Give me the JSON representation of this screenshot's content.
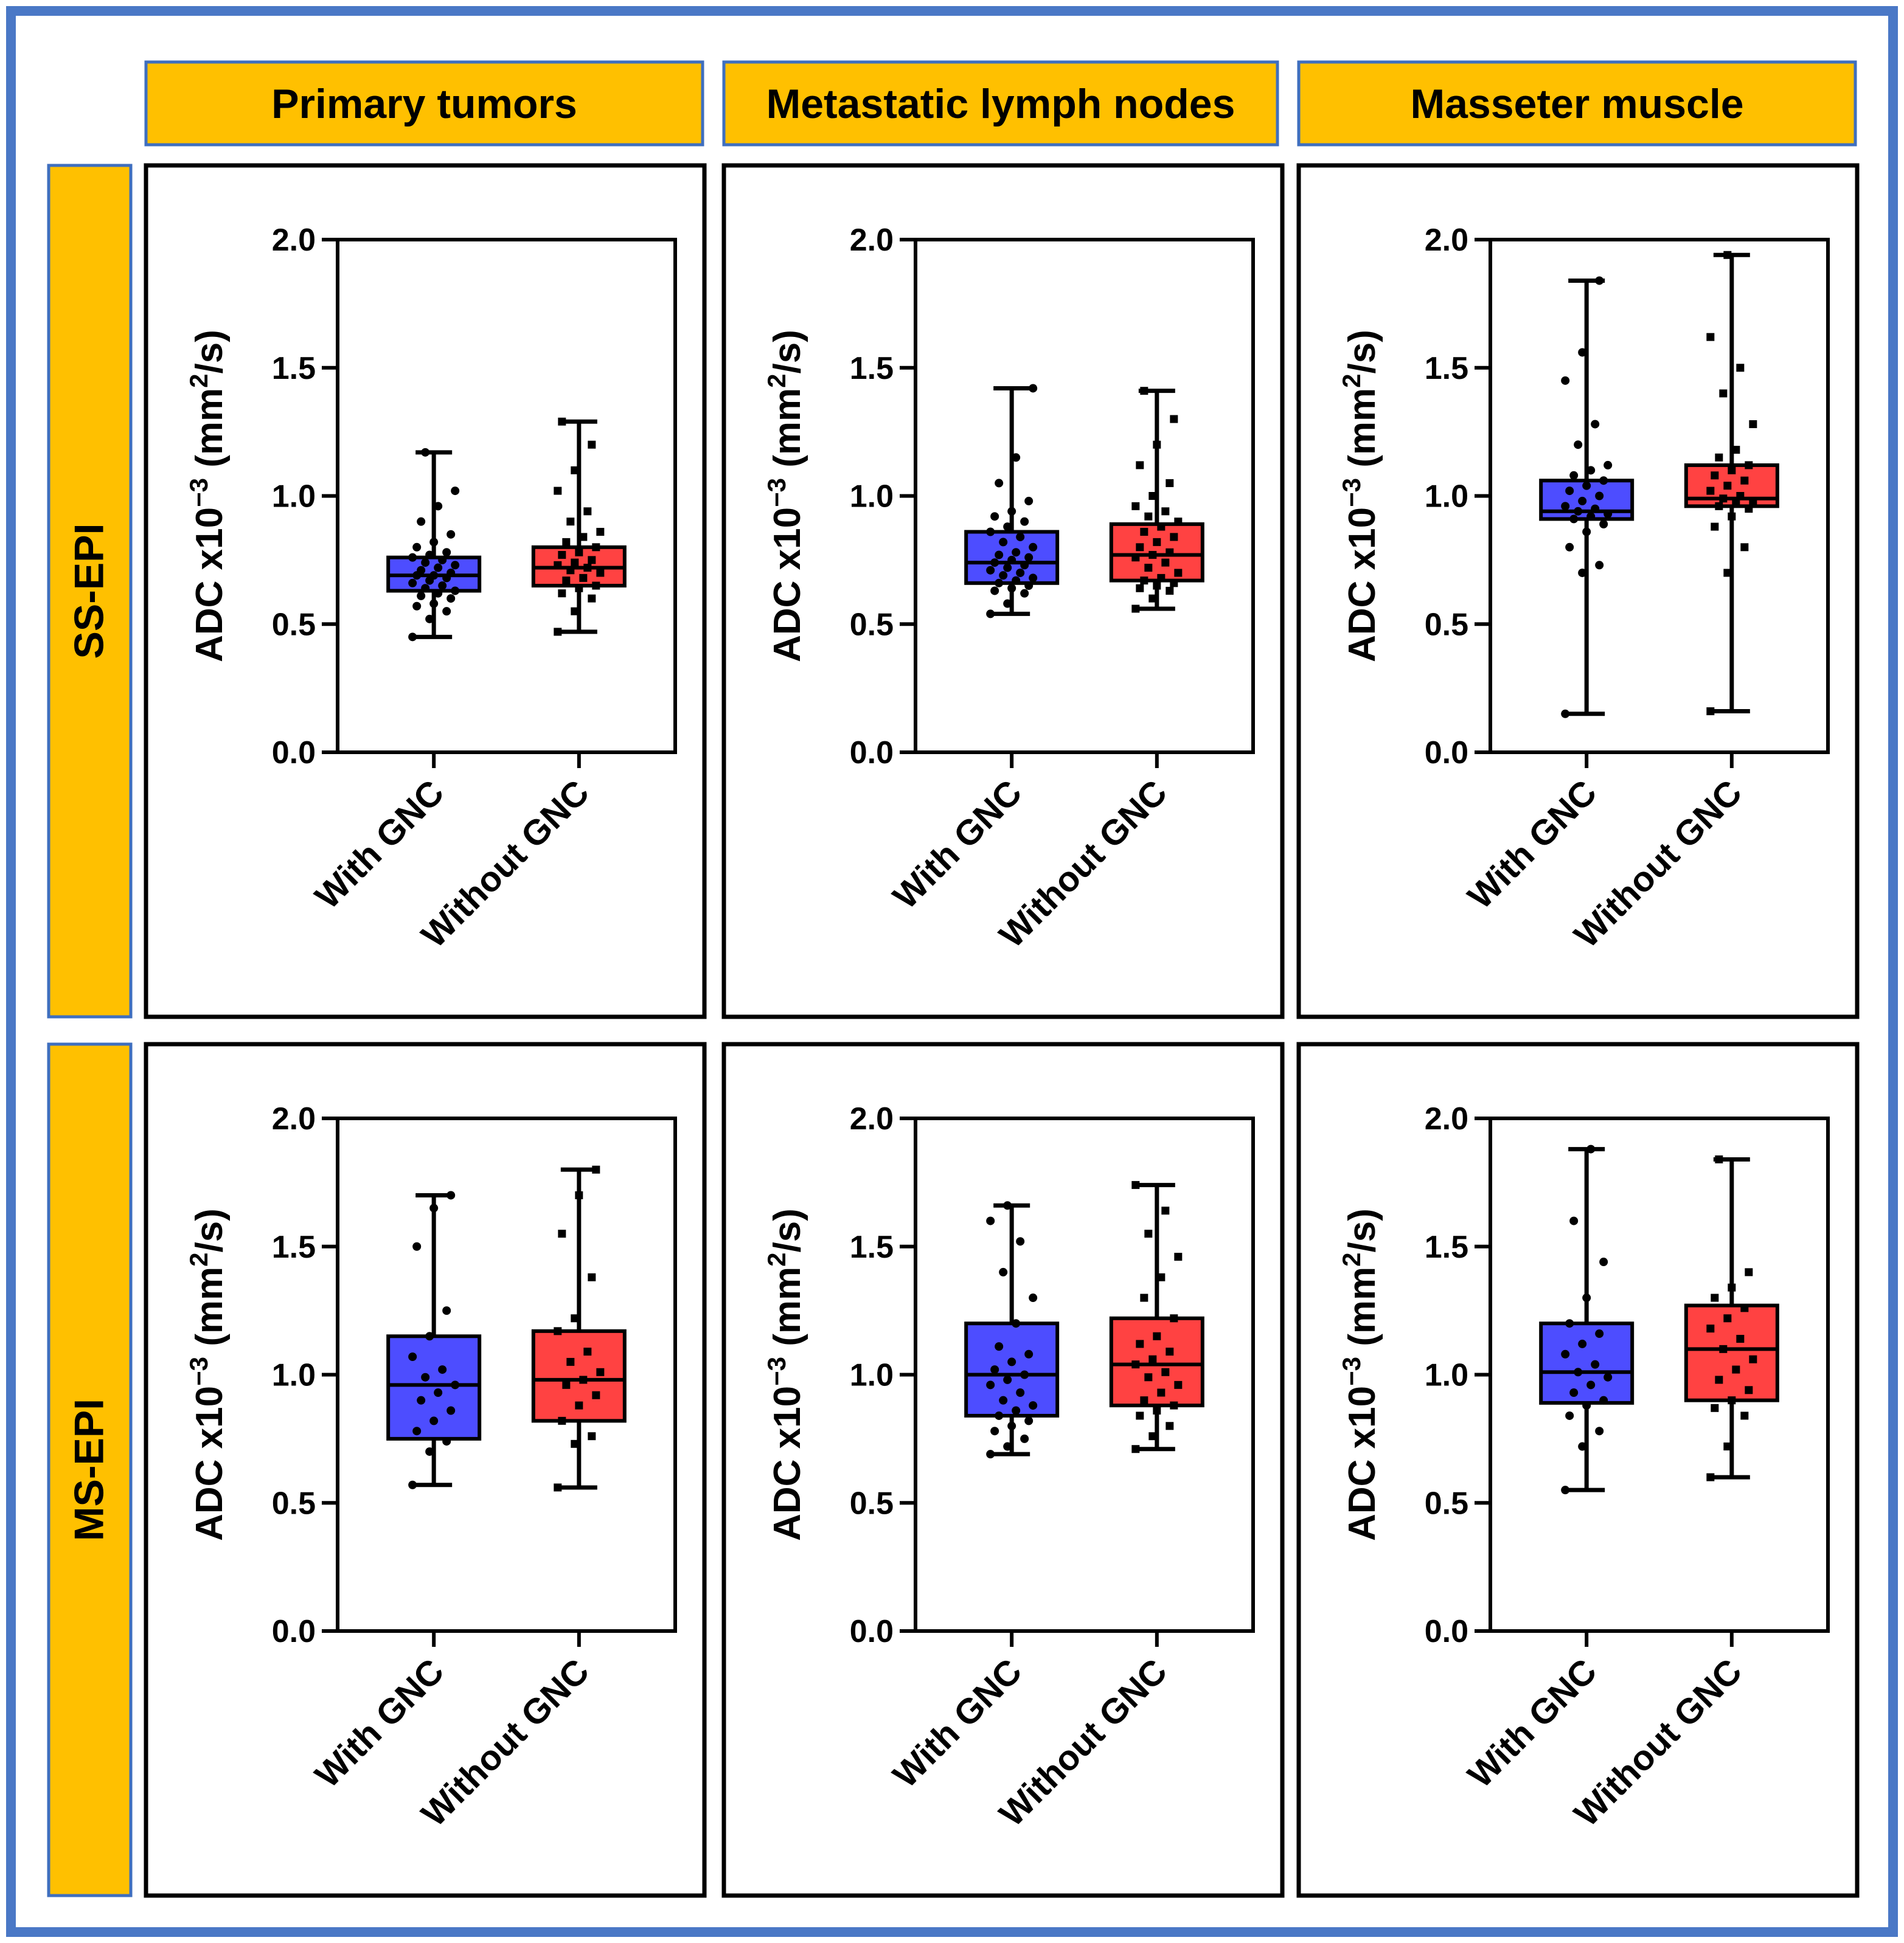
{
  "colors": {
    "frame": "#4a78c6",
    "header_fill": "#ffc000",
    "header_border": "#3f6fbf",
    "with_gnc": "#4d4dff",
    "without_gnc": "#ff4242",
    "ink": "#000000"
  },
  "column_headers": [
    "Primary tumors",
    "Metastatic lymph nodes",
    "Masseter muscle"
  ],
  "row_headers": [
    "SS-EPI",
    "MS-EPI"
  ],
  "chart_data": [
    {
      "type": "box",
      "row": "SS-EPI",
      "column": "Primary tumors",
      "ylabel": "ADC x10^-3 (mm^2/s)",
      "ylim": [
        0,
        2.0
      ],
      "yticks": [
        "0.0",
        "0.5",
        "1.0",
        "1.5",
        "2.0"
      ],
      "categories": [
        "With GNC",
        "Without GNC"
      ],
      "series": [
        {
          "name": "With GNC",
          "min": 0.45,
          "q1": 0.63,
          "median": 0.69,
          "q3": 0.76,
          "max": 1.17,
          "points": [
            0.45,
            0.52,
            0.55,
            0.57,
            0.58,
            0.6,
            0.61,
            0.62,
            0.63,
            0.64,
            0.65,
            0.66,
            0.67,
            0.68,
            0.69,
            0.69,
            0.7,
            0.71,
            0.72,
            0.73,
            0.74,
            0.75,
            0.76,
            0.77,
            0.78,
            0.8,
            0.82,
            0.85,
            0.9,
            0.96,
            1.02,
            1.17
          ]
        },
        {
          "name": "Without GNC",
          "min": 0.47,
          "q1": 0.65,
          "median": 0.72,
          "q3": 0.8,
          "max": 1.29,
          "points": [
            0.47,
            0.55,
            0.6,
            0.62,
            0.64,
            0.65,
            0.67,
            0.68,
            0.7,
            0.71,
            0.72,
            0.73,
            0.74,
            0.75,
            0.77,
            0.78,
            0.8,
            0.82,
            0.84,
            0.86,
            0.9,
            0.94,
            1.02,
            1.1,
            1.2,
            1.29
          ]
        }
      ]
    },
    {
      "type": "box",
      "row": "SS-EPI",
      "column": "Metastatic lymph nodes",
      "ylabel": "ADC x10^-3 (mm^2/s)",
      "ylim": [
        0,
        2.0
      ],
      "yticks": [
        "0.0",
        "0.5",
        "1.0",
        "1.5",
        "2.0"
      ],
      "categories": [
        "With GNC",
        "Without GNC"
      ],
      "series": [
        {
          "name": "With GNC",
          "min": 0.54,
          "q1": 0.66,
          "median": 0.74,
          "q3": 0.86,
          "max": 1.42,
          "points": [
            0.54,
            0.58,
            0.62,
            0.63,
            0.64,
            0.65,
            0.66,
            0.67,
            0.68,
            0.69,
            0.7,
            0.71,
            0.72,
            0.73,
            0.74,
            0.75,
            0.76,
            0.77,
            0.78,
            0.8,
            0.82,
            0.84,
            0.86,
            0.88,
            0.9,
            0.92,
            0.94,
            0.98,
            1.05,
            1.15,
            1.42
          ]
        },
        {
          "name": "Without GNC",
          "min": 0.56,
          "q1": 0.67,
          "median": 0.77,
          "q3": 0.89,
          "max": 1.41,
          "points": [
            0.56,
            0.6,
            0.63,
            0.64,
            0.65,
            0.66,
            0.67,
            0.68,
            0.7,
            0.72,
            0.74,
            0.76,
            0.77,
            0.78,
            0.8,
            0.82,
            0.84,
            0.86,
            0.88,
            0.9,
            0.92,
            0.94,
            0.96,
            1.0,
            1.05,
            1.12,
            1.2,
            1.3,
            1.41
          ]
        }
      ]
    },
    {
      "type": "box",
      "row": "SS-EPI",
      "column": "Masseter muscle",
      "ylabel": "ADC x10^-3 (mm^2/s)",
      "ylim": [
        0,
        2.0
      ],
      "yticks": [
        "0.0",
        "0.5",
        "1.0",
        "1.5",
        "2.0"
      ],
      "categories": [
        "With GNC",
        "Without GNC"
      ],
      "series": [
        {
          "name": "With GNC",
          "min": 0.15,
          "q1": 0.91,
          "median": 0.94,
          "q3": 1.06,
          "max": 1.84,
          "points": [
            0.15,
            0.7,
            0.73,
            0.8,
            0.86,
            0.89,
            0.91,
            0.92,
            0.93,
            0.94,
            0.95,
            0.96,
            0.98,
            1.0,
            1.02,
            1.04,
            1.06,
            1.08,
            1.1,
            1.12,
            1.2,
            1.28,
            1.45,
            1.56,
            1.84
          ]
        },
        {
          "name": "Without GNC",
          "min": 0.16,
          "q1": 0.96,
          "median": 0.99,
          "q3": 1.12,
          "max": 1.94,
          "points": [
            0.16,
            0.7,
            0.8,
            0.88,
            0.92,
            0.95,
            0.96,
            0.97,
            0.98,
            0.99,
            1.0,
            1.02,
            1.04,
            1.06,
            1.08,
            1.1,
            1.12,
            1.15,
            1.18,
            1.28,
            1.4,
            1.5,
            1.62,
            1.94
          ]
        }
      ]
    },
    {
      "type": "box",
      "row": "MS-EPI",
      "column": "Primary tumors",
      "ylabel": "ADC x10^-3 (mm^2/s)",
      "ylim": [
        0,
        2.0
      ],
      "yticks": [
        "0.0",
        "0.5",
        "1.0",
        "1.5",
        "2.0"
      ],
      "categories": [
        "With GNC",
        "Without GNC"
      ],
      "series": [
        {
          "name": "With GNC",
          "min": 0.57,
          "q1": 0.75,
          "median": 0.96,
          "q3": 1.15,
          "max": 1.7,
          "points": [
            0.57,
            0.7,
            0.74,
            0.78,
            0.82,
            0.86,
            0.9,
            0.93,
            0.96,
            0.99,
            1.02,
            1.07,
            1.15,
            1.25,
            1.5,
            1.65,
            1.7
          ]
        },
        {
          "name": "Without GNC",
          "min": 0.56,
          "q1": 0.82,
          "median": 0.98,
          "q3": 1.17,
          "max": 1.8,
          "points": [
            0.56,
            0.73,
            0.76,
            0.82,
            0.88,
            0.92,
            0.96,
            0.98,
            1.01,
            1.05,
            1.09,
            1.17,
            1.22,
            1.38,
            1.55,
            1.7,
            1.8
          ]
        }
      ]
    },
    {
      "type": "box",
      "row": "MS-EPI",
      "column": "Metastatic lymph nodes",
      "ylabel": "ADC x10^-3 (mm^2/s)",
      "ylim": [
        0,
        2.0
      ],
      "yticks": [
        "0.0",
        "0.5",
        "1.0",
        "1.5",
        "2.0"
      ],
      "categories": [
        "With GNC",
        "Without GNC"
      ],
      "series": [
        {
          "name": "With GNC",
          "min": 0.69,
          "q1": 0.84,
          "median": 1.0,
          "q3": 1.2,
          "max": 1.66,
          "points": [
            0.69,
            0.72,
            0.75,
            0.78,
            0.8,
            0.82,
            0.84,
            0.86,
            0.88,
            0.9,
            0.93,
            0.96,
            0.98,
            1.0,
            1.02,
            1.05,
            1.08,
            1.11,
            1.2,
            1.3,
            1.4,
            1.52,
            1.6,
            1.66
          ]
        },
        {
          "name": "Without GNC",
          "min": 0.71,
          "q1": 0.88,
          "median": 1.04,
          "q3": 1.22,
          "max": 1.74,
          "points": [
            0.71,
            0.76,
            0.8,
            0.84,
            0.86,
            0.88,
            0.9,
            0.93,
            0.96,
            0.99,
            1.01,
            1.04,
            1.06,
            1.09,
            1.12,
            1.15,
            1.22,
            1.3,
            1.38,
            1.46,
            1.55,
            1.64,
            1.74
          ]
        }
      ]
    },
    {
      "type": "box",
      "row": "MS-EPI",
      "column": "Masseter muscle",
      "ylabel": "ADC x10^-3 (mm^2/s)",
      "ylim": [
        0,
        2.0
      ],
      "yticks": [
        "0.0",
        "0.5",
        "1.0",
        "1.5",
        "2.0"
      ],
      "categories": [
        "With GNC",
        "Without GNC"
      ],
      "series": [
        {
          "name": "With GNC",
          "min": 0.55,
          "q1": 0.89,
          "median": 1.01,
          "q3": 1.2,
          "max": 1.88,
          "points": [
            0.55,
            0.72,
            0.78,
            0.84,
            0.88,
            0.9,
            0.93,
            0.96,
            0.99,
            1.01,
            1.04,
            1.08,
            1.12,
            1.16,
            1.2,
            1.3,
            1.44,
            1.6,
            1.88
          ]
        },
        {
          "name": "Without GNC",
          "min": 0.6,
          "q1": 0.9,
          "median": 1.1,
          "q3": 1.27,
          "max": 1.84,
          "points": [
            0.6,
            0.72,
            0.84,
            0.87,
            0.9,
            0.94,
            0.98,
            1.02,
            1.06,
            1.1,
            1.14,
            1.18,
            1.22,
            1.26,
            1.3,
            1.34,
            1.4,
            1.84
          ]
        }
      ]
    }
  ]
}
